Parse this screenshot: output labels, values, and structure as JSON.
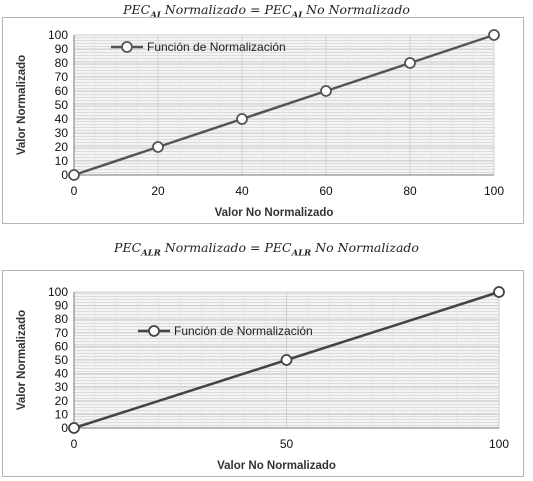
{
  "equations": [
    {
      "base": "PEC",
      "sub": "AI",
      "left_rest": " Normalizado = ",
      "base2": "PEC",
      "sub2": "AI",
      "right_rest": " No Normalizado"
    },
    {
      "base": "PEC",
      "sub": "ALR",
      "left_rest": " Normalizado = ",
      "base2": "PEC",
      "sub2": "ALR",
      "right_rest": " No Normalizado"
    }
  ],
  "chart_data": [
    {
      "type": "line",
      "xlabel": "Valor No Normalizado",
      "ylabel": "Valor Normalizado",
      "xlim": [
        0,
        100
      ],
      "ylim": [
        0,
        100
      ],
      "x_ticks": [
        0,
        20,
        40,
        60,
        80,
        100
      ],
      "y_ticks": [
        0,
        10,
        20,
        30,
        40,
        50,
        60,
        70,
        80,
        90,
        100
      ],
      "grid": true,
      "legend_position": "top-left",
      "series": [
        {
          "name": "Función de Normalización",
          "x": [
            0,
            20,
            40,
            60,
            80,
            100
          ],
          "y": [
            0,
            20,
            40,
            60,
            80,
            100
          ],
          "color": "#555555"
        }
      ]
    },
    {
      "type": "line",
      "xlabel": "Valor No Normalizado",
      "ylabel": "Valor Normalizado",
      "xlim": [
        0,
        100
      ],
      "ylim": [
        0,
        100
      ],
      "x_ticks": [
        0,
        50,
        100
      ],
      "y_ticks": [
        0,
        10,
        20,
        30,
        40,
        50,
        60,
        70,
        80,
        90,
        100
      ],
      "grid": true,
      "legend_position": "top-left",
      "series": [
        {
          "name": "Función de Normalización",
          "x": [
            0,
            50,
            100
          ],
          "y": [
            0,
            50,
            100
          ],
          "color": "#444444"
        }
      ]
    }
  ]
}
